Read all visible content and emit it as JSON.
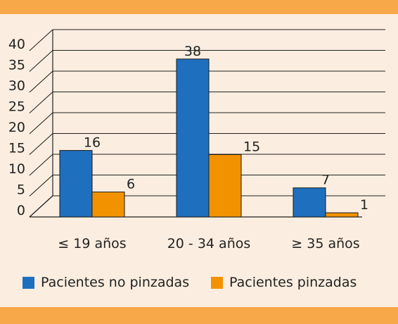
{
  "colors": {
    "band": "#f7a848",
    "background": "#fbeee0",
    "series_blue": "#1f6fbf",
    "series_orange": "#f39200"
  },
  "chart_data": {
    "type": "bar",
    "categories": [
      "≤ 19 años",
      "20 - 34 años",
      "≥ 35 años"
    ],
    "series": [
      {
        "name": "Pacientes no pinzadas",
        "values": [
          16,
          38,
          7
        ],
        "color": "#1f6fbf"
      },
      {
        "name": "Pacientes pinzadas",
        "values": [
          6,
          15,
          1
        ],
        "color": "#f39200"
      }
    ],
    "ylim": [
      0,
      40
    ],
    "yticks": [
      0,
      5,
      10,
      15,
      20,
      25,
      30,
      35,
      40
    ],
    "grid": true,
    "style": "3d-perspective",
    "legend_position": "bottom"
  }
}
